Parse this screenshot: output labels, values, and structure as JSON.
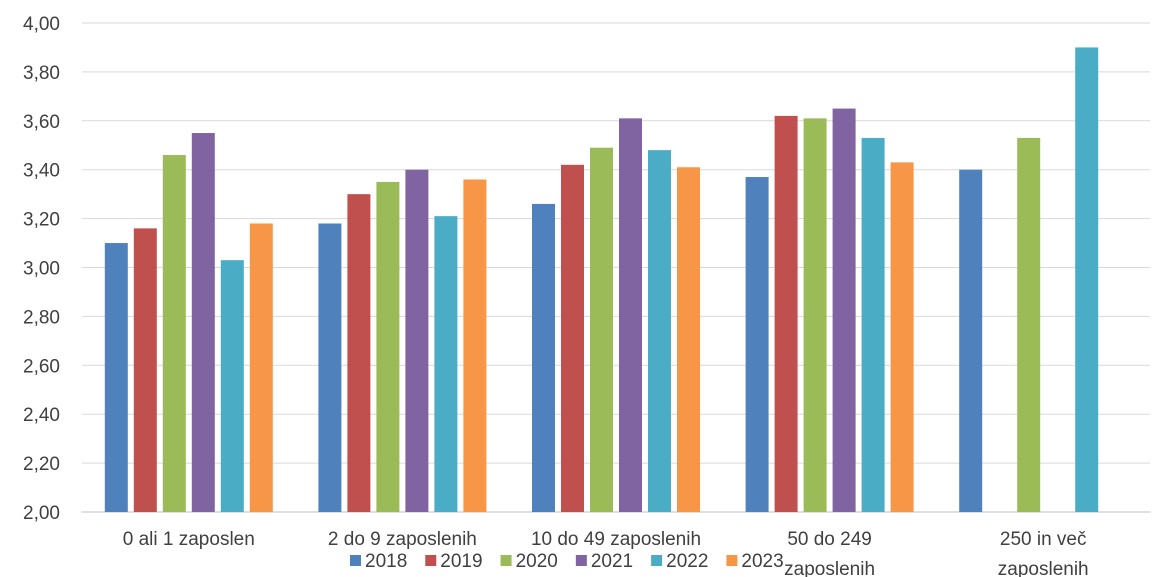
{
  "chart_data": {
    "type": "bar",
    "categories": [
      "0 ali 1 zaposlen",
      "2 do 9 zaposlenih",
      "10 do 49 zaposlenih",
      "50 do 249 zaposlenih",
      "250 in več zaposlenih"
    ],
    "category_lines": [
      [
        "0 ali 1 zaposlen"
      ],
      [
        "2 do 9 zaposlenih"
      ],
      [
        "10 do 49 zaposlenih"
      ],
      [
        "50 do 249",
        "zaposlenih"
      ],
      [
        "250 in več",
        "zaposlenih"
      ]
    ],
    "series": [
      {
        "name": "2018",
        "color": "#4F81BD",
        "values": [
          3.1,
          3.18,
          3.26,
          3.37,
          3.4
        ]
      },
      {
        "name": "2019",
        "color": "#C0504D",
        "values": [
          3.16,
          3.3,
          3.42,
          3.62,
          null
        ]
      },
      {
        "name": "2020",
        "color": "#9BBB59",
        "values": [
          3.46,
          3.35,
          3.49,
          3.61,
          3.53
        ]
      },
      {
        "name": "2021",
        "color": "#8064A2",
        "values": [
          3.55,
          3.4,
          3.61,
          3.65,
          null
        ]
      },
      {
        "name": "2022",
        "color": "#4BACC6",
        "values": [
          3.03,
          3.21,
          3.48,
          3.53,
          3.9
        ]
      },
      {
        "name": "2023",
        "color": "#F79646",
        "values": [
          3.18,
          3.36,
          3.41,
          3.43,
          null
        ]
      }
    ],
    "y_ticks": [
      "2,00",
      "2,20",
      "2,40",
      "2,60",
      "2,80",
      "3,00",
      "3,20",
      "3,40",
      "3,60",
      "3,80",
      "4,00"
    ],
    "ylim": [
      2.0,
      4.0
    ],
    "grid": true,
    "legend_position": "bottom"
  }
}
